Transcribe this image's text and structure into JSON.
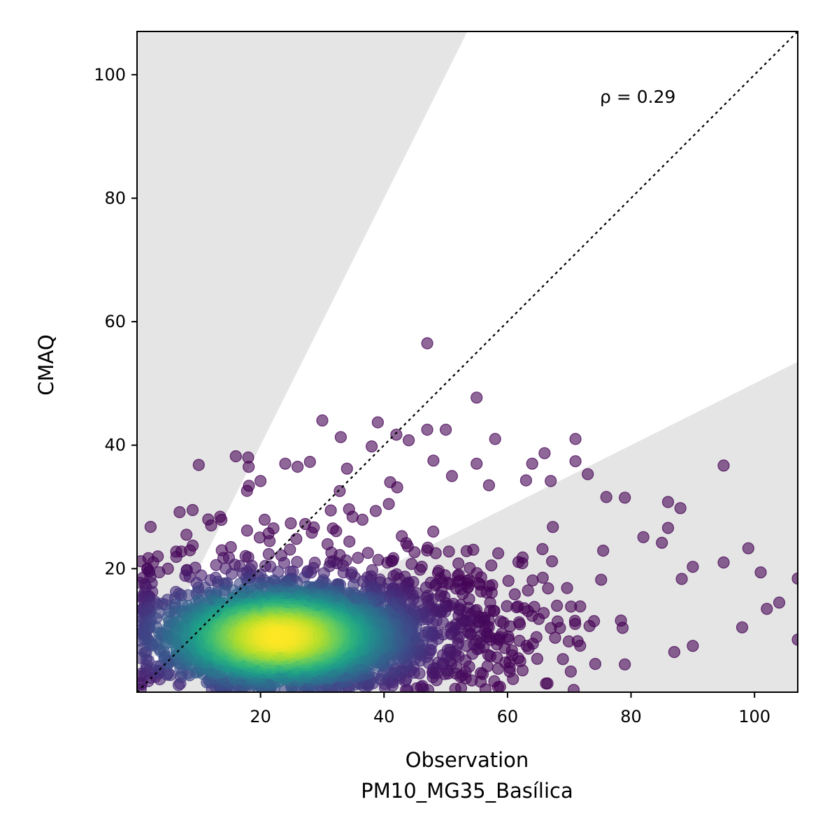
{
  "chart_data": {
    "type": "scatter",
    "title": "",
    "xlabel": "Observation",
    "xlabel_sub": "PM10_MG35_Basílica",
    "ylabel": "CMAQ",
    "xlim": [
      0,
      107
    ],
    "ylim": [
      0,
      107
    ],
    "xticks": [
      20,
      40,
      60,
      80,
      100
    ],
    "yticks": [
      20,
      40,
      60,
      80,
      100
    ],
    "grid": false,
    "annotation": "ρ = 0.29",
    "reference_line": {
      "style": "dotted",
      "from": [
        0,
        0
      ],
      "to": [
        107,
        107
      ],
      "color": "#000000"
    },
    "shaded_regions": [
      {
        "description": "above factor-of-2 band",
        "polygon": [
          [
            0,
            0
          ],
          [
            53.5,
            107
          ],
          [
            0,
            107
          ]
        ],
        "color": "#e5e5e5"
      },
      {
        "description": "below factor-of-2 band",
        "polygon": [
          [
            0,
            0
          ],
          [
            107,
            0
          ],
          [
            107,
            53.5
          ]
        ],
        "color": "#e5e5e5"
      }
    ],
    "colormap": "viridis",
    "density_center": {
      "x": 23,
      "y": 9
    },
    "n_points": 3200,
    "outliers": [
      [
        47,
        56.5
      ],
      [
        55,
        47.7
      ],
      [
        30,
        44
      ],
      [
        39,
        43.7
      ],
      [
        47,
        42.5
      ],
      [
        50,
        42.5
      ],
      [
        42,
        41.7
      ],
      [
        58,
        41
      ],
      [
        71,
        41
      ],
      [
        33,
        41.3
      ],
      [
        44,
        40.8
      ],
      [
        38,
        39.8
      ],
      [
        10,
        36.8
      ],
      [
        16,
        38.2
      ],
      [
        18,
        38
      ],
      [
        95,
        36.7
      ],
      [
        66,
        38.7
      ],
      [
        71,
        37.4
      ],
      [
        64,
        37
      ],
      [
        55,
        37
      ],
      [
        24,
        37
      ],
      [
        26,
        36.5
      ],
      [
        28,
        37.3
      ],
      [
        48,
        37.5
      ],
      [
        34,
        36.2
      ],
      [
        73,
        35.3
      ],
      [
        51,
        35
      ],
      [
        57,
        33.5
      ],
      [
        63,
        34.3
      ],
      [
        67,
        34.2
      ],
      [
        20,
        34.2
      ],
      [
        41,
        34
      ],
      [
        76,
        31.6
      ],
      [
        79,
        31.5
      ],
      [
        86,
        30.8
      ],
      [
        88,
        29.8
      ],
      [
        90,
        20.3
      ],
      [
        101,
        19.4
      ],
      [
        107,
        18.4
      ],
      [
        95,
        21
      ],
      [
        99,
        23.3
      ],
      [
        82,
        25.1
      ],
      [
        85,
        24.2
      ],
      [
        86,
        26.6
      ],
      [
        104,
        14.5
      ],
      [
        107,
        8.5
      ],
      [
        102,
        13.5
      ],
      [
        98,
        10.5
      ],
      [
        90,
        7.5
      ],
      [
        87,
        6.5
      ],
      [
        79,
        4.5
      ],
      [
        62,
        11
      ],
      [
        74,
        11.5
      ],
      [
        68,
        14
      ],
      [
        3,
        2.5
      ],
      [
        2,
        15.5
      ],
      [
        5,
        20
      ],
      [
        8,
        25.5
      ],
      [
        9,
        29.5
      ],
      [
        12,
        27
      ]
    ]
  }
}
